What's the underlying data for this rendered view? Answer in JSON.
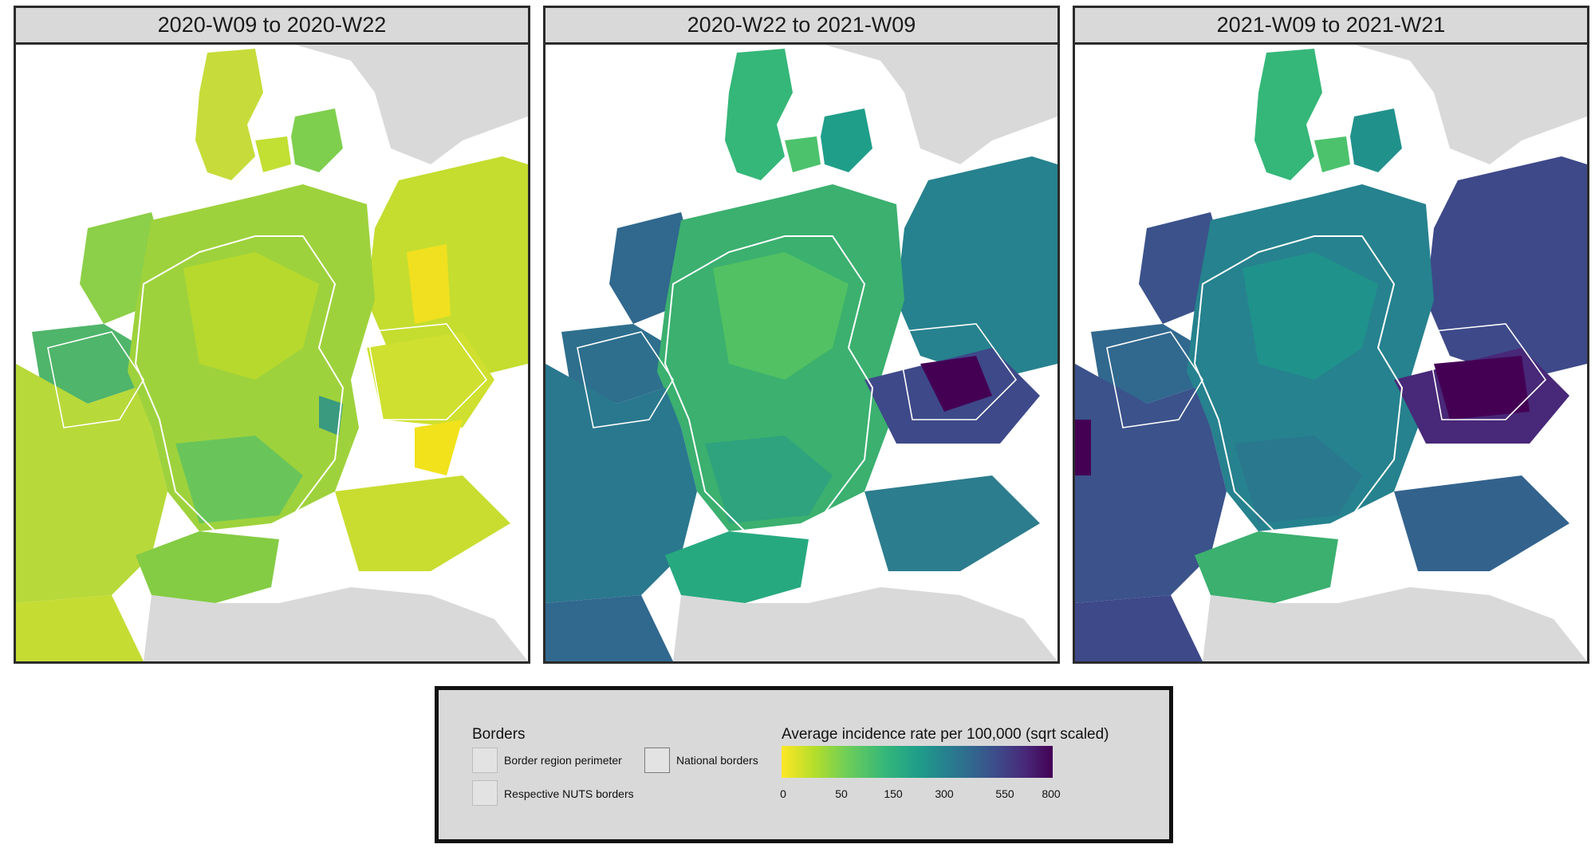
{
  "panels": [
    {
      "title": "2020-W09 to 2020-W22",
      "scheme": "early"
    },
    {
      "title": "2020-W22 to 2021-W09",
      "scheme": "mid"
    },
    {
      "title": "2021-W09 to 2021-W21",
      "scheme": "late"
    }
  ],
  "legend": {
    "borders_title": "Borders",
    "border_region_perimeter": "Border region perimeter",
    "national_borders": "National borders",
    "respective_nuts_borders": "Respective NUTS borders",
    "colorbar_title": "Average incidence rate per 100,000 (sqrt scaled)",
    "ticks": [
      "0",
      "50",
      "150",
      "300",
      "550",
      "800"
    ]
  },
  "colors": {
    "background_land": "#d9d9d9",
    "sea": "#ffffff",
    "viridis_low": "#fde725",
    "viridis_high": "#440154"
  }
}
